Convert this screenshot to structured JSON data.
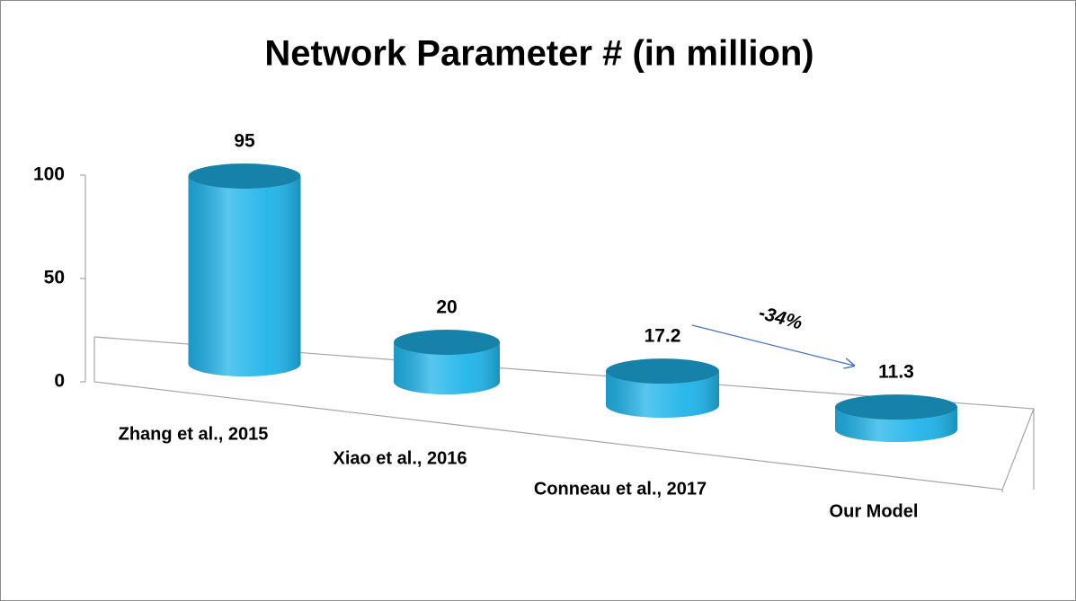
{
  "chart_data": {
    "type": "bar3d",
    "title": "Network Parameter # (in million)",
    "categories": [
      "Zhang et al., 2015",
      "Xiao et al., 2016",
      "Conneau et al., 2017",
      "Our Model"
    ],
    "values": [
      95,
      20,
      17.2,
      11.3
    ],
    "color": "#1fb4ea",
    "ylim": [
      0,
      100
    ],
    "yticks": [
      0,
      50,
      100
    ],
    "annotation": "-34%"
  }
}
